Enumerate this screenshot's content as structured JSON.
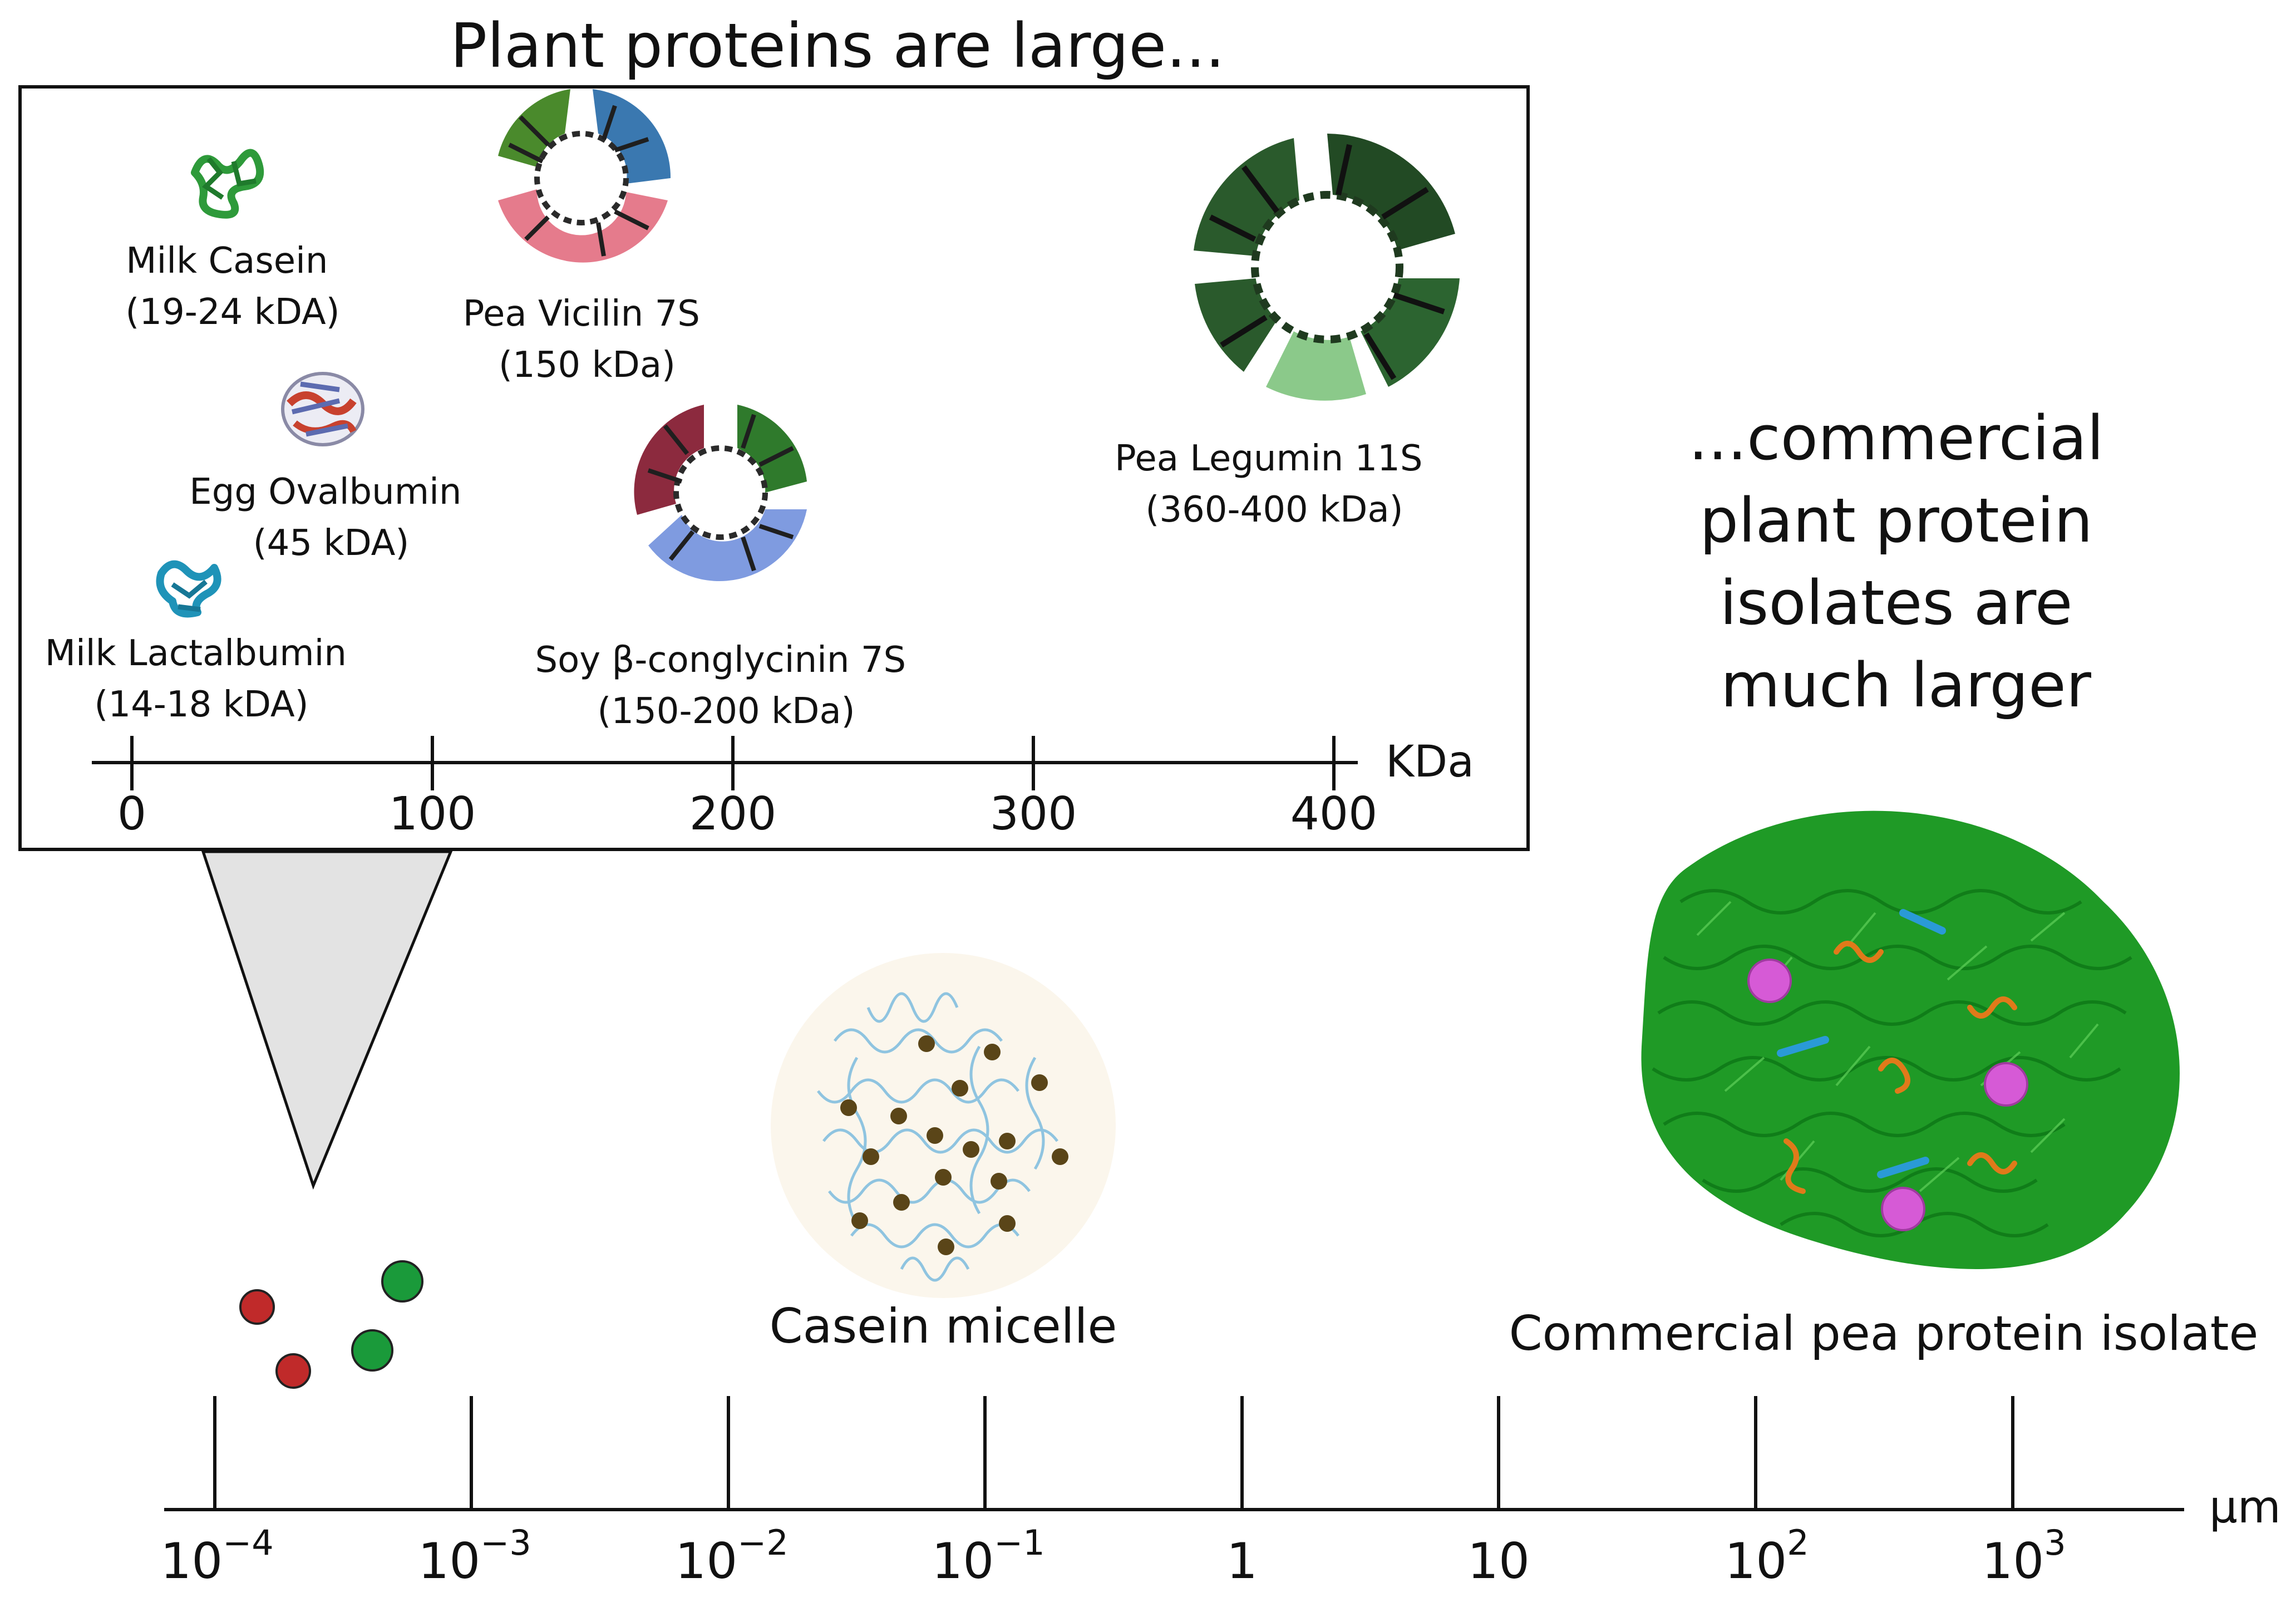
{
  "title": "Plant proteins are large...",
  "side_text": [
    "...commercial",
    "plant protein",
    "isolates are",
    "much larger"
  ],
  "inset": {
    "proteins": [
      {
        "name": "Milk Casein",
        "size": "(19-24 kDA)",
        "icon": "casein-protein-icon",
        "color": "#2e9a3a"
      },
      {
        "name": "Egg Ovalbumin",
        "size": "(45 kDA)",
        "icon": "ovalbumin-protein-icon",
        "color": "#c8412e"
      },
      {
        "name": "Milk Lactalbumin",
        "size": "(14-18 kDA)",
        "icon": "lactalbumin-protein-icon",
        "color": "#1f93b8"
      },
      {
        "name": "Pea Vicilin 7S",
        "size": "(150 kDa)",
        "icon": "vicilin-trimer-icon",
        "color": "#e57b8c"
      },
      {
        "name": "Soy β-conglycinin 7S",
        "size": "(150-200 kDa)",
        "icon": "conglycinin-trimer-icon",
        "color": "#7f9be0"
      },
      {
        "name": "Pea Legumin 11S",
        "size": "(360-400 kDa)",
        "icon": "legumin-hexamer-icon",
        "color": "#2a5a2c"
      }
    ],
    "axis": {
      "unit": "KDa",
      "ticks": [
        "0",
        "100",
        "200",
        "300",
        "400"
      ]
    }
  },
  "bottom_axis": {
    "unit": "μm",
    "ticks": [
      {
        "base": "10",
        "exp": "−4"
      },
      {
        "base": "10",
        "exp": "−3"
      },
      {
        "base": "10",
        "exp": "−2"
      },
      {
        "base": "10",
        "exp": "−1"
      },
      {
        "base": "1",
        "exp": ""
      },
      {
        "base": "10",
        "exp": ""
      },
      {
        "base": "10",
        "exp": "2"
      },
      {
        "base": "10",
        "exp": "3"
      }
    ]
  },
  "labels": {
    "casein_micelle": "Casein micelle",
    "pea_isolate": "Commercial pea protein isolate"
  },
  "colors": {
    "green_protein": "#1a9a3a",
    "red_protein": "#c02a2a",
    "micelle_dot": "#5a4518",
    "micelle_strand": "#8fc4e0",
    "isolate_fibre": "#1f9a26",
    "isolate_pink": "#d65ad6",
    "isolate_orange": "#e07a1a",
    "isolate_blue": "#2a9ad6"
  }
}
